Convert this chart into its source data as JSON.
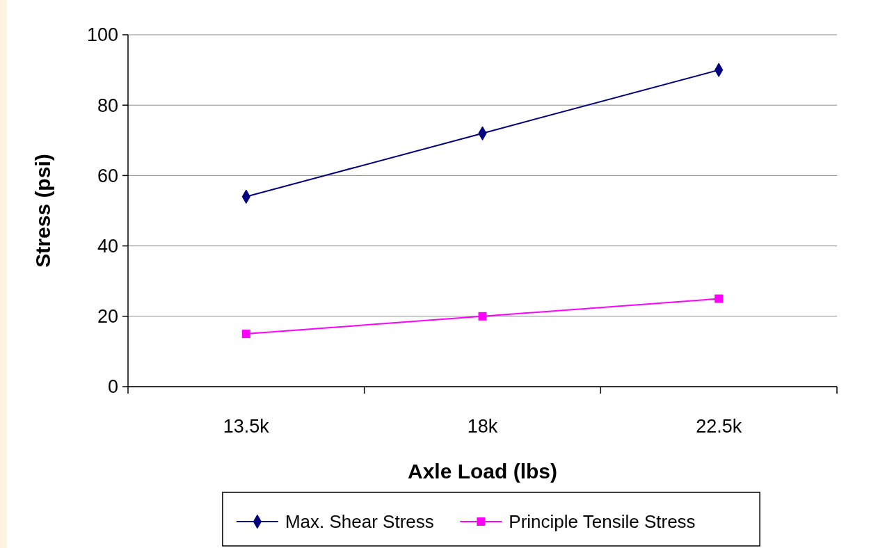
{
  "chart_data": {
    "type": "line",
    "xlabel": "Axle Load (lbs)",
    "ylabel": "Stress (psi)",
    "categories": [
      "13.5k",
      "18k",
      "22.5k"
    ],
    "series": [
      {
        "name": "Max. Shear Stress",
        "color": "#000080",
        "marker": "diamond",
        "values": [
          54,
          72,
          90
        ]
      },
      {
        "name": "Principle Tensile Stress",
        "color": "#ff00ff",
        "marker": "square",
        "values": [
          15,
          20,
          25
        ]
      }
    ],
    "ylim": [
      0,
      100
    ],
    "yticks": [
      0,
      20,
      40,
      60,
      80,
      100
    ],
    "grid": "y",
    "legend": "bottom",
    "line_style": "solid"
  }
}
